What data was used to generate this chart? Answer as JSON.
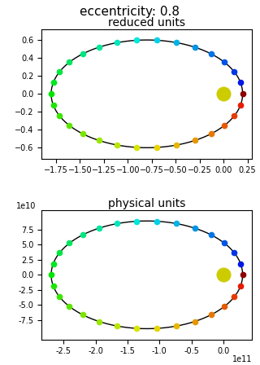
{
  "eccentricity": 0.8,
  "title_top": "eccentricity: 0.8",
  "title1": "reduced units",
  "title2": "physical units",
  "AU": 149600000000.0,
  "a_reduced": 1.0,
  "e": 0.8,
  "num_points": 30,
  "sun_color": "#cccc00",
  "fig_width": 3.2,
  "fig_height": 4.48,
  "dpi": 100
}
